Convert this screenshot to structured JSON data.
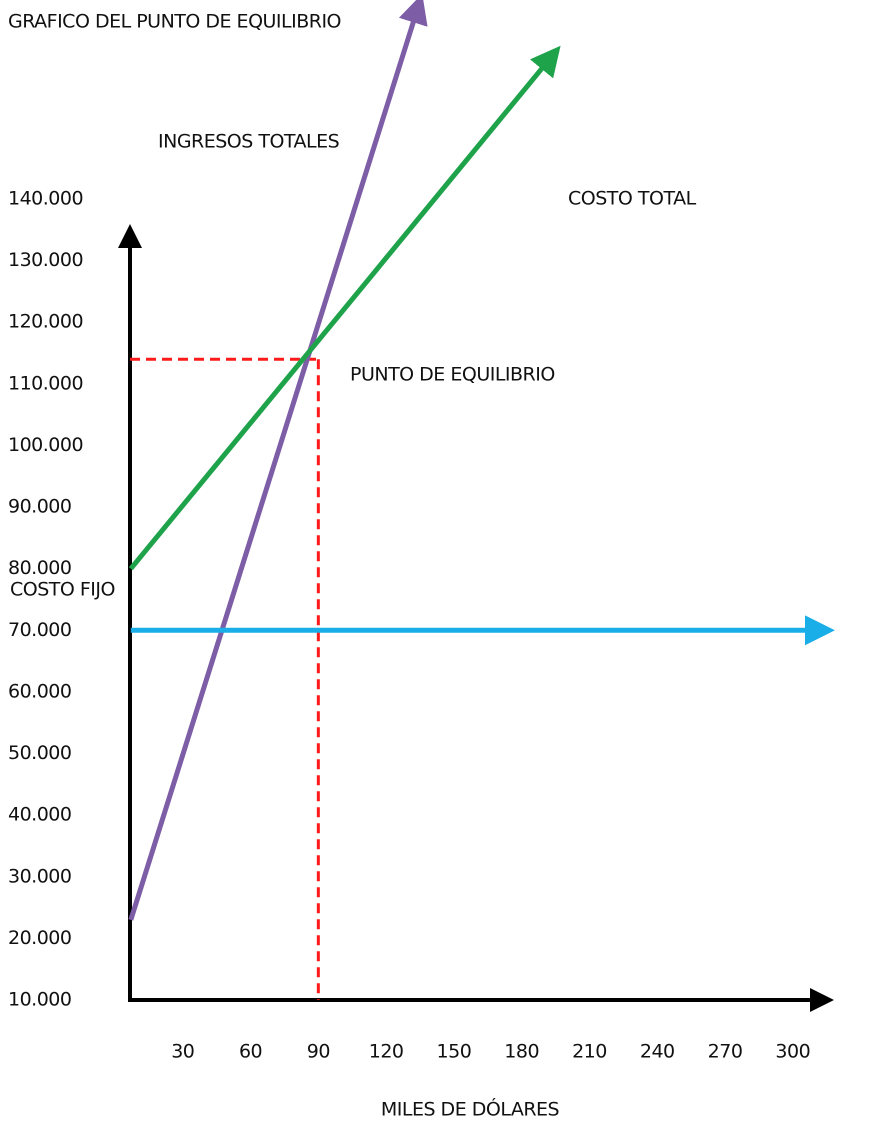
{
  "chart_data": {
    "type": "line",
    "title": "GRAFICO DEL PUNTO DE EQUILIBRIO",
    "x_label": "MILES DE DÓLARES",
    "xlim": [
      0,
      320
    ],
    "ylim": [
      10000,
      140000
    ],
    "xticks": [
      30,
      60,
      90,
      120,
      150,
      180,
      210,
      240,
      270,
      300
    ],
    "yticks": [
      {
        "value": 10000,
        "label": "10.000"
      },
      {
        "value": 20000,
        "label": "20.000"
      },
      {
        "value": 30000,
        "label": "30.000"
      },
      {
        "value": 40000,
        "label": "40.000"
      },
      {
        "value": 50000,
        "label": "50.000"
      },
      {
        "value": 60000,
        "label": "60.000"
      },
      {
        "value": 70000,
        "label": "70.000"
      },
      {
        "value": 80000,
        "label": "80.000"
      },
      {
        "value": 90000,
        "label": "90.000"
      },
      {
        "value": 100000,
        "label": "100.000"
      },
      {
        "value": 110000,
        "label": "110.000"
      },
      {
        "value": 120000,
        "label": "120.000"
      },
      {
        "value": 130000,
        "label": "130.000"
      },
      {
        "value": 140000,
        "label": "140.000"
      }
    ],
    "series": [
      {
        "name": "INGRESOS TOTALES",
        "color": "#7d5ea6",
        "x": [
          7,
          134
        ],
        "values": [
          23000,
          171000
        ]
      },
      {
        "name": "COSTO TOTAL",
        "color": "#1ea34b",
        "x": [
          7,
          193
        ],
        "values": [
          80000,
          163000
        ]
      },
      {
        "name": "COSTO FIJO",
        "color": "#1aaee8",
        "x": [
          7,
          312
        ],
        "values": [
          70000,
          70000
        ]
      }
    ],
    "break_even": {
      "label": "PUNTO DE EQUILIBRIO",
      "color": "#ff1a1a",
      "x": 90,
      "y": 114000
    }
  }
}
